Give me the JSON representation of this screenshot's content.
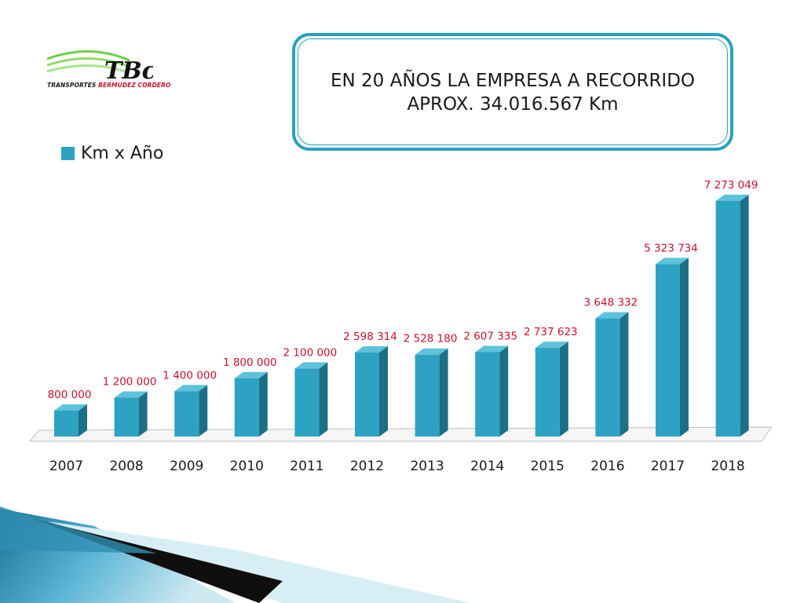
{
  "logo": {
    "mark": "TBc",
    "text_part1": "TRANSPORTES ",
    "text_part2": "BERMUDEZ CORDERO"
  },
  "header": {
    "title_line1": "EN 20 AÑOS LA EMPRESA A RECORRIDO",
    "title_line2": "APROX. 34.016.567 Km"
  },
  "colors": {
    "bar_front": "#2ea2c2",
    "bar_side": "#1d6f86",
    "bar_top": "#5ec2da",
    "label": "#c8102e",
    "accent": "#2aa0be"
  },
  "chart_data": {
    "type": "bar",
    "categories": [
      "2007",
      "2008",
      "2009",
      "2010",
      "2011",
      "2012",
      "2013",
      "2014",
      "2015",
      "2016",
      "2017",
      "2018"
    ],
    "series": [
      {
        "name": "Km x Año",
        "values": [
          800000,
          1200000,
          1400000,
          1800000,
          2100000,
          2598314,
          2528180,
          2607335,
          2737623,
          3648332,
          5323734,
          7273049
        ],
        "labels": [
          "800 000",
          "1 200 000",
          "1 400 000",
          "1 800 000",
          "2 100 000",
          "2 598 314",
          "2 528 180",
          "2 607 335",
          "2 737 623",
          "3 648 332",
          "5 323 734",
          "7 273 049"
        ]
      }
    ],
    "ylim": [
      0,
      7500000
    ],
    "legend_position": "top-left",
    "grid": false,
    "style": "3d-bar"
  }
}
